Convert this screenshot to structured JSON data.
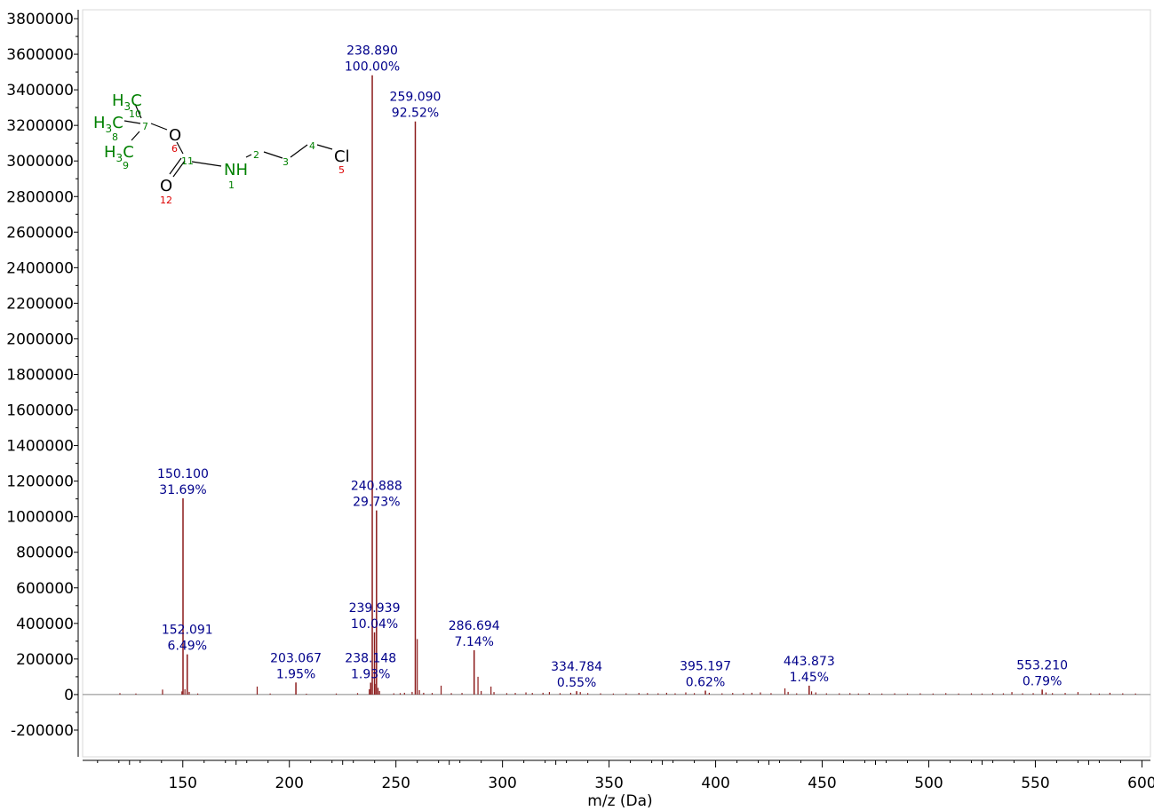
{
  "chart_data": {
    "type": "bar",
    "subtype": "mass-spectrum stick plot",
    "xlabel": "m/z (Da)",
    "ylabel": "",
    "xlim": [
      103,
      604
    ],
    "ylim": [
      -350000,
      3850000
    ],
    "x_ticks": [
      150,
      200,
      250,
      300,
      350,
      400,
      450,
      500,
      550,
      600
    ],
    "x_tick_labels": [
      "150",
      "200",
      "250",
      "300",
      "350",
      "400",
      "450",
      "500",
      "550",
      "600"
    ],
    "y_ticks": [
      3800000,
      3600000,
      3400000,
      3200000,
      3000000,
      2800000,
      2600000,
      2400000,
      2200000,
      2000000,
      1800000,
      1600000,
      1400000,
      1200000,
      1000000,
      800000,
      600000,
      400000,
      200000,
      0,
      -200000
    ],
    "y_tick_labels": [
      "3800000",
      "3600000",
      "3400000",
      "3200000",
      "3000000",
      "2800000",
      "2600000",
      "2400000",
      "2200000",
      "2000000",
      "1800000",
      "1600000",
      "1400000",
      "1200000",
      "1000000",
      "800000",
      "600000",
      "400000",
      "200000",
      "0",
      "-200000"
    ],
    "grid": false,
    "legend": "none",
    "colors": {
      "peak": "#8b1a1a",
      "label": "#00008b",
      "axis": "#000000",
      "frame": "#d0d0d0",
      "molecule_green": "#008000",
      "molecule_red": "#dd0000"
    },
    "labeled_peaks": [
      {
        "mz": 150.1,
        "intensity": 1103000,
        "mz_label": "150.100",
        "pct_label": "31.69%"
      },
      {
        "mz": 152.091,
        "intensity": 226000,
        "mz_label": "152.091",
        "pct_label": "6.49%"
      },
      {
        "mz": 203.067,
        "intensity": 68000,
        "mz_label": "203.067",
        "pct_label": "1.95%"
      },
      {
        "mz": 238.148,
        "intensity": 67000,
        "mz_label": "238.148",
        "pct_label": "1.93%"
      },
      {
        "mz": 238.89,
        "intensity": 3482000,
        "mz_label": "238.890",
        "pct_label": "100.00%"
      },
      {
        "mz": 239.939,
        "intensity": 350000,
        "mz_label": "239.939",
        "pct_label": "10.04%"
      },
      {
        "mz": 240.888,
        "intensity": 1035000,
        "mz_label": "240.888",
        "pct_label": "29.73%"
      },
      {
        "mz": 259.09,
        "intensity": 3222000,
        "mz_label": "259.090",
        "pct_label": "92.52%"
      },
      {
        "mz": 286.694,
        "intensity": 249000,
        "mz_label": "286.694",
        "pct_label": "7.14%"
      },
      {
        "mz": 334.784,
        "intensity": 19000,
        "mz_label": "334.784",
        "pct_label": "0.55%"
      },
      {
        "mz": 395.197,
        "intensity": 22000,
        "mz_label": "395.197",
        "pct_label": "0.62%"
      },
      {
        "mz": 443.873,
        "intensity": 50000,
        "mz_label": "443.873",
        "pct_label": "1.45%"
      },
      {
        "mz": 553.21,
        "intensity": 28000,
        "mz_label": "553.210",
        "pct_label": "0.79%"
      }
    ],
    "minor_peaks": [
      {
        "mz": 120.5,
        "intensity": 8000
      },
      {
        "mz": 128.0,
        "intensity": 6000
      },
      {
        "mz": 140.5,
        "intensity": 28000
      },
      {
        "mz": 149.6,
        "intensity": 18000
      },
      {
        "mz": 151.0,
        "intensity": 30000
      },
      {
        "mz": 153.0,
        "intensity": 15000
      },
      {
        "mz": 157.0,
        "intensity": 6000
      },
      {
        "mz": 184.9,
        "intensity": 45000
      },
      {
        "mz": 191.0,
        "intensity": 6000
      },
      {
        "mz": 208.0,
        "intensity": 5000
      },
      {
        "mz": 222.0,
        "intensity": 6000
      },
      {
        "mz": 232.0,
        "intensity": 8000
      },
      {
        "mz": 237.5,
        "intensity": 30000
      },
      {
        "mz": 240.2,
        "intensity": 60000
      },
      {
        "mz": 241.6,
        "intensity": 38000
      },
      {
        "mz": 242.3,
        "intensity": 20000
      },
      {
        "mz": 249.0,
        "intensity": 7000
      },
      {
        "mz": 252.0,
        "intensity": 8000
      },
      {
        "mz": 254.0,
        "intensity": 10000
      },
      {
        "mz": 257.6,
        "intensity": 15000
      },
      {
        "mz": 260.0,
        "intensity": 312000
      },
      {
        "mz": 261.0,
        "intensity": 25000
      },
      {
        "mz": 263.0,
        "intensity": 10000
      },
      {
        "mz": 267.0,
        "intensity": 9000
      },
      {
        "mz": 271.2,
        "intensity": 50000
      },
      {
        "mz": 276.0,
        "intensity": 8000
      },
      {
        "mz": 281.0,
        "intensity": 9000
      },
      {
        "mz": 288.5,
        "intensity": 100000
      },
      {
        "mz": 290.0,
        "intensity": 20000
      },
      {
        "mz": 294.6,
        "intensity": 45000
      },
      {
        "mz": 296.0,
        "intensity": 14000
      },
      {
        "mz": 302.0,
        "intensity": 8000
      },
      {
        "mz": 306.0,
        "intensity": 9000
      },
      {
        "mz": 311.0,
        "intensity": 12000
      },
      {
        "mz": 314.0,
        "intensity": 9000
      },
      {
        "mz": 319.0,
        "intensity": 10000
      },
      {
        "mz": 322.0,
        "intensity": 14000
      },
      {
        "mz": 327.0,
        "intensity": 8000
      },
      {
        "mz": 332.0,
        "intensity": 10000
      },
      {
        "mz": 336.5,
        "intensity": 14000
      },
      {
        "mz": 340.0,
        "intensity": 8000
      },
      {
        "mz": 346.0,
        "intensity": 7000
      },
      {
        "mz": 352.0,
        "intensity": 6000
      },
      {
        "mz": 358.0,
        "intensity": 7000
      },
      {
        "mz": 364.0,
        "intensity": 9000
      },
      {
        "mz": 368.0,
        "intensity": 8000
      },
      {
        "mz": 373.0,
        "intensity": 7000
      },
      {
        "mz": 377.0,
        "intensity": 10000
      },
      {
        "mz": 381.0,
        "intensity": 7000
      },
      {
        "mz": 386.0,
        "intensity": 12000
      },
      {
        "mz": 390.0,
        "intensity": 8000
      },
      {
        "mz": 397.0,
        "intensity": 10000
      },
      {
        "mz": 403.0,
        "intensity": 7000
      },
      {
        "mz": 408.0,
        "intensity": 9000
      },
      {
        "mz": 413.0,
        "intensity": 8000
      },
      {
        "mz": 417.0,
        "intensity": 10000
      },
      {
        "mz": 421.0,
        "intensity": 12000
      },
      {
        "mz": 426.0,
        "intensity": 8000
      },
      {
        "mz": 432.5,
        "intensity": 35000
      },
      {
        "mz": 434.0,
        "intensity": 15000
      },
      {
        "mz": 438.0,
        "intensity": 7000
      },
      {
        "mz": 445.0,
        "intensity": 18000
      },
      {
        "mz": 447.0,
        "intensity": 12000
      },
      {
        "mz": 452.0,
        "intensity": 7000
      },
      {
        "mz": 458.0,
        "intensity": 7000
      },
      {
        "mz": 463.0,
        "intensity": 8000
      },
      {
        "mz": 467.0,
        "intensity": 6000
      },
      {
        "mz": 472.0,
        "intensity": 9000
      },
      {
        "mz": 478.0,
        "intensity": 6000
      },
      {
        "mz": 484.0,
        "intensity": 7000
      },
      {
        "mz": 490.0,
        "intensity": 6000
      },
      {
        "mz": 496.0,
        "intensity": 7000
      },
      {
        "mz": 502.0,
        "intensity": 6000
      },
      {
        "mz": 508.0,
        "intensity": 8000
      },
      {
        "mz": 514.0,
        "intensity": 6000
      },
      {
        "mz": 520.0,
        "intensity": 7000
      },
      {
        "mz": 525.0,
        "intensity": 6000
      },
      {
        "mz": 530.0,
        "intensity": 8000
      },
      {
        "mz": 535.0,
        "intensity": 7000
      },
      {
        "mz": 539.0,
        "intensity": 14000
      },
      {
        "mz": 544.0,
        "intensity": 7000
      },
      {
        "mz": 549.0,
        "intensity": 8000
      },
      {
        "mz": 555.0,
        "intensity": 12000
      },
      {
        "mz": 558.0,
        "intensity": 8000
      },
      {
        "mz": 564.0,
        "intensity": 9000
      },
      {
        "mz": 570.0,
        "intensity": 14000
      },
      {
        "mz": 576.0,
        "intensity": 7000
      },
      {
        "mz": 580.0,
        "intensity": 6000
      },
      {
        "mz": 585.0,
        "intensity": 10000
      },
      {
        "mz": 591.0,
        "intensity": 7000
      },
      {
        "mz": 597.0,
        "intensity": 6000
      }
    ]
  },
  "molecule": {
    "name": "",
    "groups": {
      "h3c_a": "H3C",
      "h3c_b": "H3C",
      "h3c_c": "H3C",
      "o_ether": "O",
      "o_carbonyl": "O",
      "nh": "NH",
      "cl": "Cl"
    },
    "atom_numbers": {
      "n1": "1",
      "n2": "2",
      "n3": "3",
      "n4": "4",
      "n5": "5",
      "n6": "6",
      "n7": "7",
      "n8": "8",
      "n9": "9",
      "n10": "10",
      "n11": "11",
      "n12": "12"
    }
  }
}
